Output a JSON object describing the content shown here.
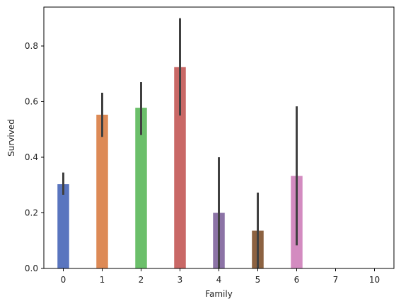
{
  "chart_data": {
    "type": "bar",
    "title": "",
    "xlabel": "Family",
    "ylabel": "Survived",
    "categories": [
      "0",
      "1",
      "2",
      "3",
      "4",
      "5",
      "6",
      "7",
      "10"
    ],
    "values": [
      0.303,
      0.553,
      0.578,
      0.724,
      0.2,
      0.136,
      0.333,
      0.0,
      0.0
    ],
    "error_bars": [
      [
        0.265,
        0.345
      ],
      [
        0.473,
        0.632
      ],
      [
        0.48,
        0.67
      ],
      [
        0.55,
        0.9
      ],
      [
        0.0,
        0.4
      ],
      [
        0.0,
        0.273
      ],
      [
        0.083,
        0.583
      ],
      [
        0.0,
        0.0
      ],
      [
        0.0,
        0.0
      ]
    ],
    "ylim": [
      0,
      0.94
    ],
    "yticks": [
      "0.0",
      "0.2",
      "0.4",
      "0.6",
      "0.8"
    ],
    "grid": false,
    "colors": [
      "#5975bf",
      "#dd8a56",
      "#6bbf6a",
      "#c96866",
      "#8c73a6",
      "#8c6241",
      "#d38bc0",
      "#8c8c8c",
      "#ccb974"
    ],
    "error_bar_color": "#404040"
  }
}
